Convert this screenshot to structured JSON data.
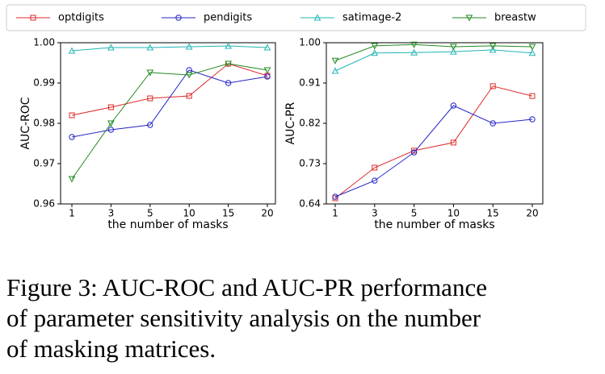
{
  "chart_data": [
    {
      "type": "line",
      "ylabel": "AUC-ROC",
      "xlabel": "the number of masks",
      "categories": [
        "1",
        "3",
        "5",
        "10",
        "15",
        "20"
      ],
      "ylim": [
        0.96,
        1.0
      ],
      "yticks": [
        0.96,
        0.97,
        0.98,
        0.99,
        {
          "value": 1.0,
          "label": "1.00"
        }
      ],
      "series": [
        {
          "name": "optdigits",
          "color": "#e02828",
          "marker": "square",
          "values": [
            0.982,
            0.984,
            0.9862,
            0.9868,
            0.9948,
            0.9918
          ]
        },
        {
          "name": "pendigits",
          "color": "#2424c8",
          "marker": "circle",
          "values": [
            0.9766,
            0.9784,
            0.9796,
            0.9932,
            0.99,
            0.9916
          ]
        },
        {
          "name": "satimage-2",
          "color": "#22b4b4",
          "marker": "triangle-up",
          "values": [
            0.998,
            0.9988,
            0.9988,
            0.999,
            0.9992,
            0.9988
          ]
        },
        {
          "name": "breastw",
          "color": "#228a22",
          "marker": "triangle-down",
          "values": [
            0.9662,
            0.98,
            0.9926,
            0.992,
            0.9948,
            0.9932
          ]
        }
      ]
    },
    {
      "type": "line",
      "ylabel": "AUC-PR",
      "xlabel": "the number of masks",
      "categories": [
        "1",
        "3",
        "5",
        "10",
        "15",
        "20"
      ],
      "ylim": [
        0.64,
        1.0
      ],
      "yticks": [
        0.64,
        0.73,
        0.82,
        0.91,
        {
          "value": 1.0,
          "label": "1.00"
        }
      ],
      "series": [
        {
          "name": "optdigits",
          "color": "#e02828",
          "marker": "square",
          "values": [
            0.6526,
            0.721,
            0.759,
            0.777,
            0.903,
            0.881
          ]
        },
        {
          "name": "pendigits",
          "color": "#2424c8",
          "marker": "circle",
          "values": [
            0.656,
            0.692,
            0.755,
            0.8596,
            0.82,
            0.829
          ]
        },
        {
          "name": "satimage-2",
          "color": "#22b4b4",
          "marker": "triangle-up",
          "values": [
            0.937,
            0.977,
            0.978,
            0.98,
            0.984,
            0.977
          ]
        },
        {
          "name": "breastw",
          "color": "#228a22",
          "marker": "triangle-down",
          "values": [
            0.96,
            0.993,
            0.996,
            0.991,
            0.993,
            0.991
          ]
        }
      ]
    }
  ],
  "caption": [
    "Figure 3: AUC-ROC and AUC-PR performance",
    "of parameter sensitivity analysis on the number",
    "of masking matrices."
  ]
}
